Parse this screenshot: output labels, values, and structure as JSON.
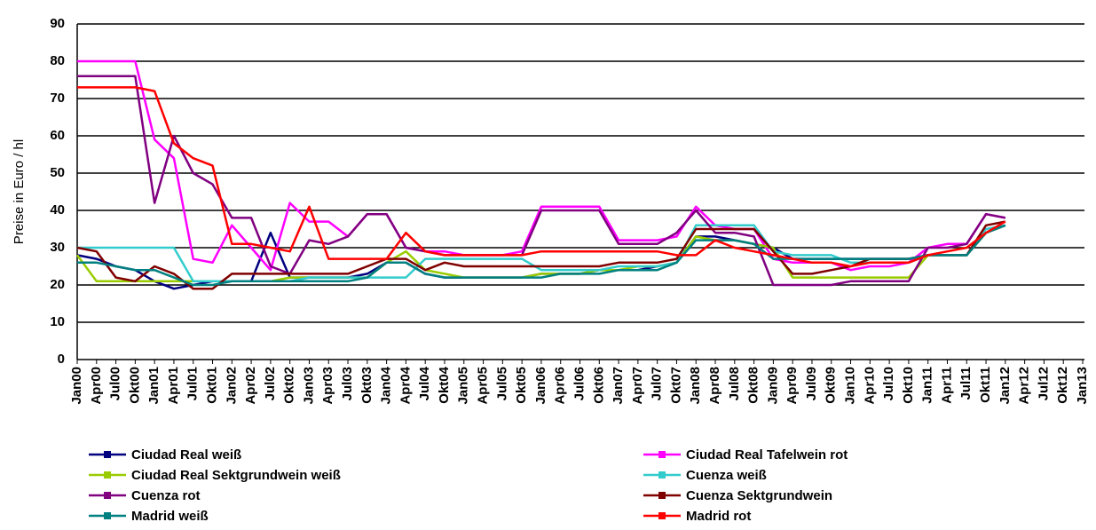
{
  "chart_data": {
    "type": "line",
    "ylabel": "Preise in Euro / hl",
    "categories": [
      "Jan00",
      "Apr00",
      "Jul00",
      "Okt00",
      "Jan01",
      "Apr01",
      "Jul01",
      "Okt01",
      "Jan02",
      "Apr02",
      "Jul02",
      "Okt02",
      "Jan03",
      "Apr03",
      "Jul03",
      "Okt03",
      "Jan04",
      "Apr04",
      "Jul04",
      "Okt04",
      "Jan05",
      "Apr05",
      "Jul05",
      "Okt05",
      "Jan06",
      "Apr06",
      "Jul06",
      "Okt06",
      "Jan07",
      "Apr07",
      "Jul07",
      "Okt07",
      "Jan08",
      "Apr08",
      "Jul08",
      "Okt08",
      "Jan09",
      "Apr09",
      "Jul09",
      "Okt09",
      "Jan10",
      "Apr10",
      "Jul10",
      "Okt10",
      "Jan11",
      "Apr11",
      "Jul11",
      "Okt11",
      "Jan12",
      "Apr12",
      "Jul12",
      "Okt12",
      "Jan13"
    ],
    "ylim": [
      0,
      90
    ],
    "yticks": [
      0,
      10,
      20,
      30,
      40,
      50,
      60,
      70,
      80,
      90
    ],
    "grid": true,
    "series": [
      {
        "name": "Ciudad Real weiß",
        "color": "#000080",
        "values": [
          28,
          27,
          25,
          24,
          21,
          19,
          20,
          21,
          21,
          21,
          34,
          22,
          22,
          22,
          22,
          23,
          26,
          26,
          23,
          22,
          22,
          22,
          22,
          22,
          23,
          23,
          23,
          24,
          24,
          24,
          25,
          26,
          33,
          33,
          32,
          31,
          30,
          27,
          27,
          27,
          27,
          27,
          27,
          27,
          28,
          28,
          28,
          34,
          36,
          null,
          null,
          null,
          null
        ]
      },
      {
        "name": "Ciudad Real Tafelwein rot",
        "color": "#ff00ff",
        "values": [
          80,
          80,
          80,
          80,
          59,
          54,
          27,
          26,
          36,
          30,
          24,
          42,
          37,
          37,
          33,
          39,
          39,
          30,
          29,
          29,
          28,
          28,
          28,
          29,
          41,
          41,
          41,
          41,
          32,
          32,
          32,
          33,
          41,
          36,
          35,
          35,
          27,
          26,
          26,
          26,
          24,
          25,
          25,
          26,
          30,
          31,
          31,
          39,
          38,
          null,
          null,
          null,
          null
        ]
      },
      {
        "name": "Ciudad Real Sektgrundwein weiß",
        "color": "#99cc00",
        "values": [
          28,
          21,
          21,
          21,
          21,
          21,
          21,
          21,
          21,
          21,
          21,
          22,
          22,
          22,
          22,
          22,
          26,
          29,
          24,
          23,
          22,
          22,
          22,
          22,
          23,
          23,
          23,
          24,
          24,
          25,
          25,
          26,
          33,
          32,
          32,
          31,
          30,
          22,
          22,
          22,
          22,
          22,
          22,
          22,
          28,
          28,
          28,
          34,
          36,
          null,
          null,
          null,
          null
        ]
      },
      {
        "name": "Cuenza weiß",
        "color": "#33cccc",
        "values": [
          30,
          30,
          30,
          30,
          30,
          30,
          21,
          21,
          21,
          21,
          21,
          21,
          22,
          22,
          22,
          22,
          22,
          22,
          27,
          27,
          27,
          27,
          27,
          27,
          24,
          24,
          24,
          24,
          25,
          25,
          25,
          26,
          36,
          36,
          36,
          36,
          29,
          28,
          28,
          28,
          26,
          26,
          26,
          26,
          28,
          28,
          28,
          35,
          36,
          null,
          null,
          null,
          null
        ]
      },
      {
        "name": "Cuenza rot",
        "color": "#800080",
        "values": [
          76,
          76,
          76,
          76,
          42,
          60,
          50,
          47,
          38,
          38,
          25,
          23,
          32,
          31,
          33,
          39,
          39,
          30,
          29,
          28,
          28,
          28,
          28,
          28,
          40,
          40,
          40,
          40,
          31,
          31,
          31,
          34,
          40,
          34,
          34,
          33,
          20,
          20,
          20,
          20,
          21,
          21,
          21,
          21,
          30,
          30,
          31,
          39,
          38,
          null,
          null,
          null,
          null
        ]
      },
      {
        "name": "Cuenza Sektgrundwein",
        "color": "#800000",
        "values": [
          30,
          29,
          22,
          21,
          25,
          23,
          19,
          19,
          23,
          23,
          23,
          23,
          23,
          23,
          23,
          25,
          27,
          27,
          24,
          26,
          25,
          25,
          25,
          25,
          25,
          25,
          25,
          25,
          26,
          26,
          26,
          27,
          35,
          35,
          35,
          35,
          29,
          23,
          23,
          24,
          25,
          27,
          27,
          27,
          28,
          28,
          28,
          36,
          37,
          null,
          null,
          null,
          null
        ]
      },
      {
        "name": "Madrid weiß",
        "color": "#008080",
        "values": [
          26,
          26,
          25,
          24,
          24,
          22,
          20,
          20,
          21,
          21,
          21,
          21,
          21,
          21,
          21,
          22,
          26,
          26,
          23,
          22,
          22,
          22,
          22,
          22,
          22,
          23,
          23,
          23,
          24,
          24,
          24,
          26,
          32,
          32,
          32,
          31,
          27,
          27,
          27,
          27,
          27,
          27,
          27,
          27,
          28,
          28,
          28,
          34,
          36,
          null,
          null,
          null,
          null
        ]
      },
      {
        "name": "Madrid rot",
        "color": "#ff0000",
        "values": [
          73,
          73,
          73,
          73,
          72,
          58,
          54,
          52,
          31,
          31,
          30,
          29,
          41,
          27,
          27,
          27,
          27,
          34,
          29,
          28,
          28,
          28,
          28,
          28,
          29,
          29,
          29,
          29,
          29,
          29,
          29,
          28,
          28,
          32,
          30,
          29,
          28,
          27,
          26,
          26,
          25,
          26,
          26,
          26,
          28,
          29,
          30,
          34,
          37,
          null,
          null,
          null,
          null
        ]
      }
    ]
  }
}
